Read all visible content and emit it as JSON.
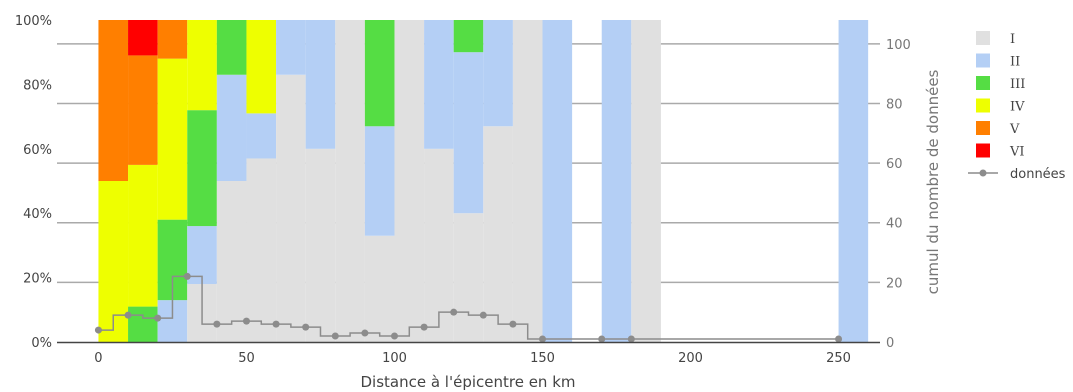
{
  "chart_data": {
    "type": "bar",
    "barmode": "stack-normalized",
    "xlabel": "Distance à l'épicentre en km",
    "ylabel_right": "cumul du nombre de données",
    "xlim": [
      -14,
      264
    ],
    "ylim_left": [
      0,
      100
    ],
    "ylim_right": [
      0,
      108
    ],
    "x_ticks": [
      0,
      50,
      100,
      150,
      200,
      250
    ],
    "y_left_ticks": [
      "0%",
      "20%",
      "40%",
      "60%",
      "80%",
      "100%"
    ],
    "y_right_ticks": [
      0,
      20,
      40,
      60,
      80,
      100
    ],
    "bin_width": 10,
    "colors": {
      "I": "#e0e0e0",
      "II": "#b4cff5",
      "III": "#55dd44",
      "IV": "#eeff00",
      "V": "#ff7f00",
      "VI": "#ff0000",
      "donnees": "#8c8c8c"
    },
    "bins": [
      {
        "x": 0,
        "I": 0,
        "II": 0,
        "III": 0,
        "IV": 50,
        "V": 50,
        "VI": 0
      },
      {
        "x": 10,
        "I": 0,
        "II": 0,
        "III": 11,
        "IV": 44,
        "V": 34,
        "VI": 11
      },
      {
        "x": 20,
        "I": 0,
        "II": 13,
        "III": 25,
        "IV": 50,
        "V": 12,
        "VI": 0
      },
      {
        "x": 30,
        "I": 18,
        "II": 18,
        "III": 36,
        "IV": 28,
        "V": 0,
        "VI": 0
      },
      {
        "x": 40,
        "I": 50,
        "II": 33,
        "III": 17,
        "IV": 0,
        "V": 0,
        "VI": 0
      },
      {
        "x": 50,
        "I": 57,
        "II": 14,
        "III": 0,
        "IV": 29,
        "V": 0,
        "VI": 0
      },
      {
        "x": 60,
        "I": 83,
        "II": 17,
        "III": 0,
        "IV": 0,
        "V": 0,
        "VI": 0
      },
      {
        "x": 70,
        "I": 60,
        "II": 40,
        "III": 0,
        "IV": 0,
        "V": 0,
        "VI": 0
      },
      {
        "x": 80,
        "I": 100,
        "II": 0,
        "III": 0,
        "IV": 0,
        "V": 0,
        "VI": 0
      },
      {
        "x": 90,
        "I": 33,
        "II": 34,
        "III": 33,
        "IV": 0,
        "V": 0,
        "VI": 0
      },
      {
        "x": 100,
        "I": 100,
        "II": 0,
        "III": 0,
        "IV": 0,
        "V": 0,
        "VI": 0
      },
      {
        "x": 110,
        "I": 60,
        "II": 40,
        "III": 0,
        "IV": 0,
        "V": 0,
        "VI": 0
      },
      {
        "x": 120,
        "I": 40,
        "II": 50,
        "III": 10,
        "IV": 0,
        "V": 0,
        "VI": 0
      },
      {
        "x": 130,
        "I": 67,
        "II": 33,
        "III": 0,
        "IV": 0,
        "V": 0,
        "VI": 0
      },
      {
        "x": 140,
        "I": 100,
        "II": 0,
        "III": 0,
        "IV": 0,
        "V": 0,
        "VI": 0
      },
      {
        "x": 150,
        "I": 0,
        "II": 100,
        "III": 0,
        "IV": 0,
        "V": 0,
        "VI": 0
      },
      {
        "x": 170,
        "I": 0,
        "II": 100,
        "III": 0,
        "IV": 0,
        "V": 0,
        "VI": 0
      },
      {
        "x": 180,
        "I": 100,
        "II": 0,
        "III": 0,
        "IV": 0,
        "V": 0,
        "VI": 0
      },
      {
        "x": 250,
        "I": 0,
        "II": 100,
        "III": 0,
        "IV": 0,
        "V": 0,
        "VI": 0
      }
    ],
    "series_order": [
      "I",
      "II",
      "III",
      "IV",
      "V",
      "VI"
    ],
    "donnees": {
      "name": "données",
      "x": [
        0,
        10,
        20,
        30,
        40,
        50,
        60,
        70,
        80,
        90,
        100,
        110,
        120,
        130,
        140,
        150,
        170,
        180,
        250
      ],
      "y": [
        4,
        9,
        8,
        22,
        6,
        7,
        6,
        5,
        2,
        3,
        2,
        5,
        10,
        9,
        6,
        1,
        1,
        1,
        1
      ]
    },
    "legend": {
      "placement": "right",
      "entries": [
        "I",
        "II",
        "III",
        "IV",
        "V",
        "VI",
        "données"
      ]
    },
    "grid": true
  }
}
